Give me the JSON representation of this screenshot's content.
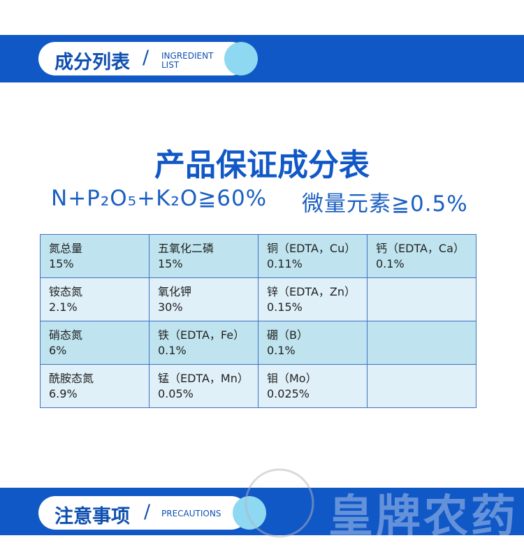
{
  "header": {
    "title": "成分列表",
    "slash": "/",
    "subtitle_lines": [
      "INGREDIENT",
      "LIST"
    ]
  },
  "main_title": "产品保证成分表",
  "formula": {
    "macro": "N+P₂O₅+K₂O≧60%",
    "trace": "微量元素≧0.5%"
  },
  "table": {
    "rows": [
      [
        {
          "name": "氮总量",
          "value": "15%"
        },
        {
          "name": "五氧化二磷",
          "value": "15%"
        },
        {
          "name": "铜（EDTA，Cu）",
          "value": "0.11%"
        },
        {
          "name": "钙（EDTA，Ca）",
          "value": "0.1%"
        }
      ],
      [
        {
          "name": "铵态氮",
          "value": "2.1%"
        },
        {
          "name": "氧化钾",
          "value": "30%"
        },
        {
          "name": "锌（EDTA，Zn）",
          "value": "0.15%"
        },
        null
      ],
      [
        {
          "name": "硝态氮",
          "value": "6%"
        },
        {
          "name": "铁（EDTA，Fe）",
          "value": "0.1%"
        },
        {
          "name": "硼（B）",
          "value": "0.1%"
        },
        null
      ],
      [
        {
          "name": "酰胺态氮",
          "value": "6.9%"
        },
        {
          "name": "锰（EDTA，Mn）",
          "value": "0.05%"
        },
        {
          "name": "钼（Mo）",
          "value": "0.025%"
        },
        null
      ]
    ]
  },
  "footer": {
    "title": "注意事项",
    "slash": "/",
    "subtitle": "PRECAUTIONS"
  },
  "watermark": "皇牌农药"
}
